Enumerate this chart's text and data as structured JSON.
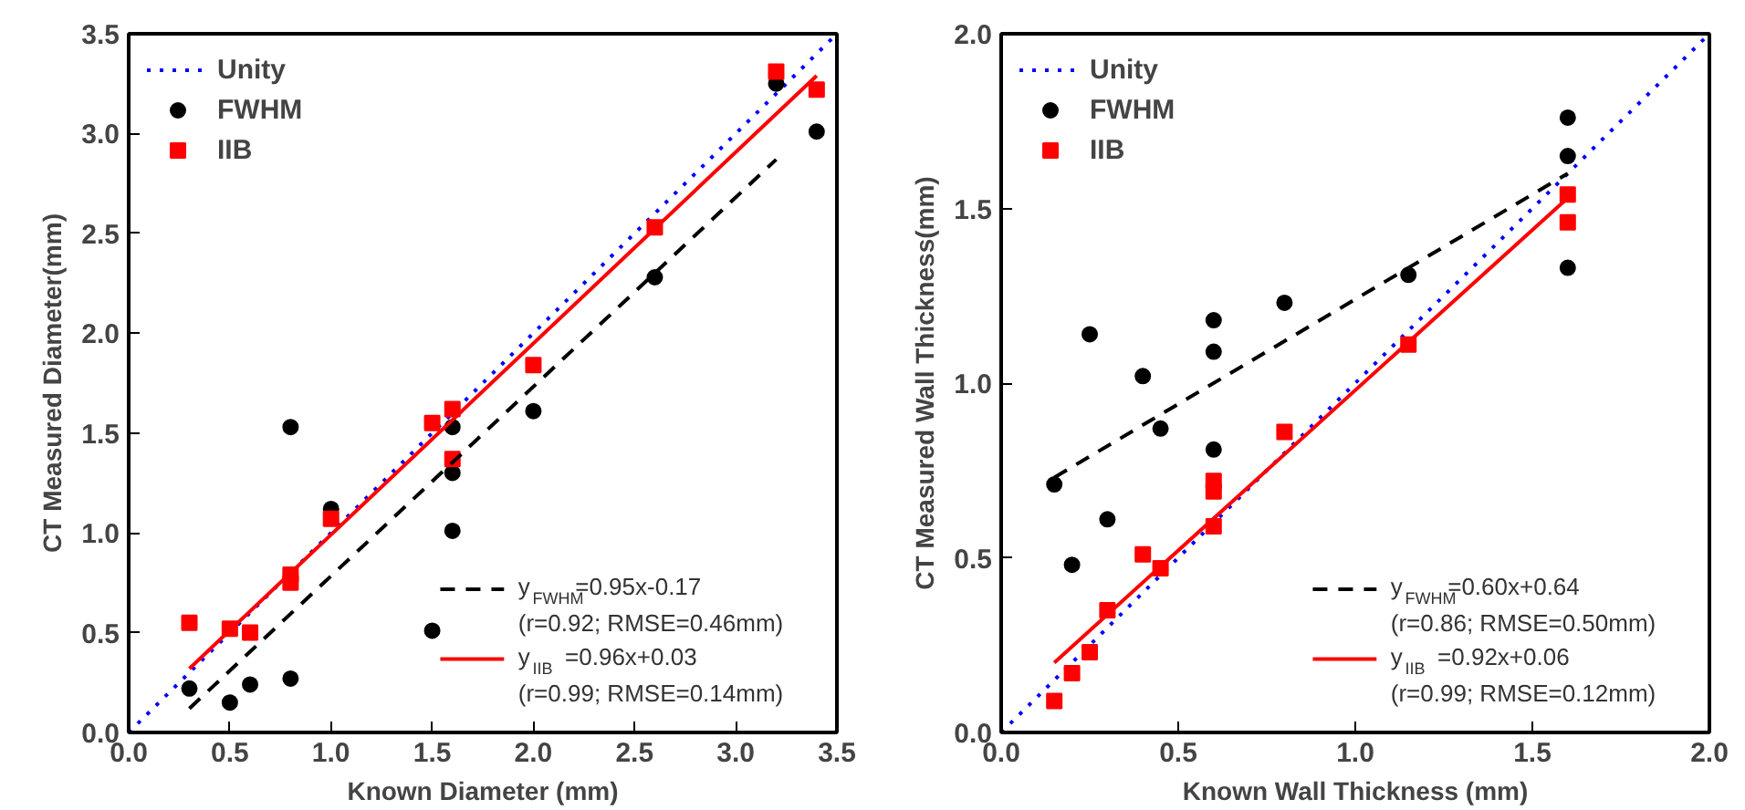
{
  "chart_data": [
    {
      "type": "scatter",
      "xlabel": "Known Diameter (mm)",
      "ylabel": "CT Measured Diameter(mm)",
      "xlim": [
        0,
        3.5
      ],
      "ylim": [
        0,
        3.5
      ],
      "xticks": [
        {
          "value": 0,
          "label": "0.0"
        },
        0.5,
        {
          "value": 1,
          "label": "1.0"
        },
        1.5,
        {
          "value": 2,
          "label": "2.0"
        },
        2.5,
        {
          "value": 3,
          "label": "3.0"
        },
        3.5
      ],
      "yticks": [
        {
          "value": 0,
          "label": "0.0"
        },
        0.5,
        {
          "value": 1,
          "label": "1.0"
        },
        1.5,
        {
          "value": 2,
          "label": "2.0"
        },
        2.5,
        {
          "value": 3,
          "label": "3.0"
        },
        3.5
      ],
      "grid": false,
      "legend": "top left",
      "series": [
        {
          "name": "Unity",
          "type": "line",
          "line_style": "dotted",
          "marker": "none",
          "color": "#0000ff",
          "x": [
            0,
            3.5
          ],
          "values": [
            0,
            3.5
          ]
        },
        {
          "name": "FWHM",
          "type": "scatter",
          "marker": "circle",
          "color": "#000000",
          "x": [
            0.3,
            0.5,
            0.6,
            0.8,
            0.8,
            1.0,
            1.5,
            1.6,
            1.6,
            1.6,
            2.0,
            2.6,
            3.2,
            3.4
          ],
          "values": [
            0.22,
            0.15,
            0.24,
            0.27,
            1.53,
            1.12,
            0.51,
            1.01,
            1.3,
            1.53,
            1.61,
            2.28,
            3.25,
            3.01
          ]
        },
        {
          "name": "IIB",
          "type": "scatter",
          "marker": "square",
          "color": "#ff0000",
          "x": [
            0.3,
            0.5,
            0.6,
            0.8,
            0.8,
            1.0,
            1.5,
            1.6,
            1.6,
            2.0,
            2.6,
            3.2,
            3.4
          ],
          "values": [
            0.55,
            0.52,
            0.5,
            0.75,
            0.79,
            1.07,
            1.55,
            1.62,
            1.37,
            1.84,
            2.53,
            3.31,
            3.22
          ]
        },
        {
          "name": "y$_{FWHM}$=0.95x-0.17\n(r=0.92; RMSE=0.46mm)",
          "type": "line",
          "line_style": "dashed",
          "marker": "none",
          "color": "#000000",
          "x": [
            0.3,
            3.2
          ],
          "values": [
            0.12,
            2.87
          ]
        },
        {
          "name": "y$_{IIB}$=0.96x+0.03\n(r=0.99; RMSE=0.14mm)",
          "type": "line",
          "line_style": "solid",
          "marker": "none",
          "color": "#ff0000",
          "x": [
            0.3,
            3.4
          ],
          "values": [
            0.32,
            3.29
          ]
        }
      ]
    },
    {
      "type": "scatter",
      "xlabel": "Known Wall Thickness (mm)",
      "ylabel": "CT Measured Wall Thickness(mm)",
      "xlim": [
        0,
        2
      ],
      "ylim": [
        0,
        2
      ],
      "xticks": [
        {
          "value": 0,
          "label": "0.0"
        },
        0.5,
        {
          "value": 1,
          "label": "1.0"
        },
        1.5,
        {
          "value": 2,
          "label": "2.0"
        }
      ],
      "yticks": [
        {
          "value": 0,
          "label": "0.0"
        },
        0.5,
        {
          "value": 1,
          "label": "1.0"
        },
        1.5,
        {
          "value": 2,
          "label": "2.0"
        }
      ],
      "grid": false,
      "legend": "top left",
      "series": [
        {
          "name": "Unity",
          "type": "line",
          "line_style": "dotted",
          "marker": "none",
          "color": "#0000ff",
          "x": [
            0,
            2
          ],
          "values": [
            0,
            2
          ]
        },
        {
          "name": "FWHM",
          "type": "scatter",
          "marker": "circle",
          "color": "#000000",
          "x": [
            0.15,
            0.2,
            0.25,
            0.3,
            0.4,
            0.45,
            0.6,
            0.6,
            0.6,
            0.8,
            1.15,
            1.6,
            1.6,
            1.6
          ],
          "values": [
            0.71,
            0.48,
            1.14,
            0.61,
            1.02,
            0.87,
            1.18,
            1.09,
            0.81,
            1.23,
            1.31,
            1.76,
            1.65,
            1.33
          ]
        },
        {
          "name": "IIB",
          "type": "scatter",
          "marker": "square",
          "color": "#ff0000",
          "x": [
            0.15,
            0.2,
            0.25,
            0.3,
            0.4,
            0.45,
            0.6,
            0.6,
            0.6,
            0.8,
            1.15,
            1.6,
            1.6
          ],
          "values": [
            0.09,
            0.17,
            0.23,
            0.35,
            0.51,
            0.47,
            0.59,
            0.69,
            0.72,
            0.86,
            1.11,
            1.54,
            1.46
          ]
        },
        {
          "name": "y$_{FWHM}$=0.60x+0.64\n(r=0.86; RMSE=0.50mm)",
          "type": "line",
          "line_style": "dashed",
          "marker": "none",
          "color": "#000000",
          "x": [
            0.15,
            1.6
          ],
          "values": [
            0.73,
            1.6
          ]
        },
        {
          "name": "y$_{IIB}$=0.92x+0.06\n(r=0.99; RMSE=0.12mm)",
          "type": "line",
          "line_style": "solid",
          "marker": "none",
          "color": "#ff0000",
          "x": [
            0.15,
            1.6
          ],
          "values": [
            0.2,
            1.53
          ]
        }
      ]
    }
  ]
}
